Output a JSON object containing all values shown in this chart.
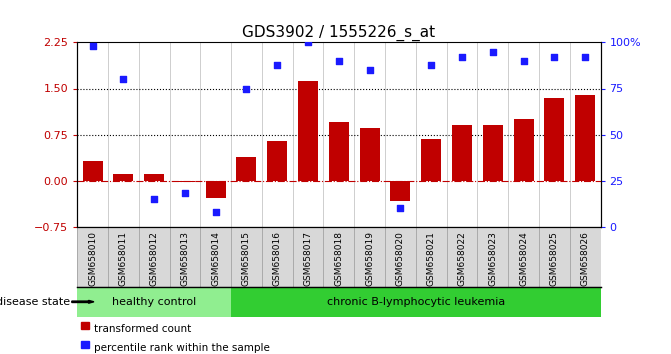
{
  "title": "GDS3902 / 1555226_s_at",
  "samples": [
    "GSM658010",
    "GSM658011",
    "GSM658012",
    "GSM658013",
    "GSM658014",
    "GSM658015",
    "GSM658016",
    "GSM658017",
    "GSM658018",
    "GSM658019",
    "GSM658020",
    "GSM658021",
    "GSM658022",
    "GSM658023",
    "GSM658024",
    "GSM658025",
    "GSM658026"
  ],
  "bar_values": [
    0.32,
    0.1,
    0.11,
    -0.02,
    -0.28,
    0.38,
    0.65,
    1.62,
    0.95,
    0.85,
    -0.33,
    0.68,
    0.9,
    0.9,
    1.0,
    1.35,
    1.4
  ],
  "percentile_values": [
    98,
    80,
    15,
    18,
    8,
    75,
    88,
    100,
    90,
    85,
    10,
    88,
    92,
    95,
    90,
    92,
    92
  ],
  "bar_color": "#c00000",
  "dot_color": "#1a1aff",
  "ylim_left": [
    -0.75,
    2.25
  ],
  "ylim_right": [
    0,
    100
  ],
  "yticks_left": [
    -0.75,
    0,
    0.75,
    1.5,
    2.25
  ],
  "yticks_right": [
    0,
    25,
    50,
    75,
    100
  ],
  "hlines": [
    0.75,
    1.5
  ],
  "zero_line_color": "#c00000",
  "hline_color": "black",
  "healthy_count": 5,
  "disease_label_healthy": "healthy control",
  "disease_label_chronic": "chronic B-lymphocytic leukemia",
  "disease_state_label": "disease state",
  "legend_bar_label": "transformed count",
  "legend_dot_label": "percentile rank within the sample",
  "bg_healthy": "#90ee90",
  "bg_chronic": "#32cd32",
  "title_fontsize": 11,
  "tick_label_fontsize": 6.5
}
